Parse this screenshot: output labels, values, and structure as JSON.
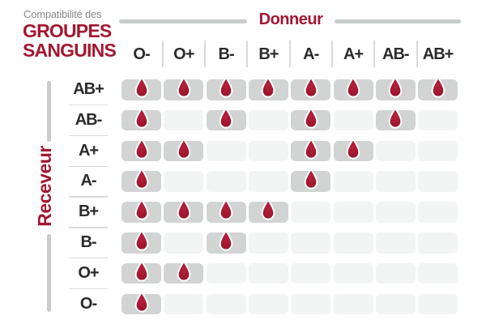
{
  "title": {
    "kicker": "Compatibilité des",
    "line1": "GROUPES",
    "line2": "SANGUINS"
  },
  "axes": {
    "donor": "Donneur",
    "recipient": "Receveur"
  },
  "chart_data": {
    "type": "heatmap",
    "title": "Compatibilité des GROUPES SANGUINS",
    "x_axis_label": "Donneur",
    "y_axis_label": "Receveur",
    "columns_donors": [
      "O-",
      "O+",
      "B-",
      "B+",
      "A-",
      "A+",
      "AB-",
      "AB+"
    ],
    "rows_recipients": [
      "AB+",
      "AB-",
      "A+",
      "A-",
      "B+",
      "B-",
      "O+",
      "O-"
    ],
    "compatible_matrix": [
      [
        1,
        1,
        1,
        1,
        1,
        1,
        1,
        1
      ],
      [
        1,
        0,
        1,
        0,
        1,
        0,
        1,
        0
      ],
      [
        1,
        1,
        0,
        0,
        1,
        1,
        0,
        0
      ],
      [
        1,
        0,
        0,
        0,
        1,
        0,
        0,
        0
      ],
      [
        1,
        1,
        1,
        1,
        0,
        0,
        0,
        0
      ],
      [
        1,
        0,
        1,
        0,
        0,
        0,
        0,
        0
      ],
      [
        1,
        1,
        0,
        0,
        0,
        0,
        0,
        0
      ],
      [
        1,
        0,
        0,
        0,
        0,
        0,
        0,
        0
      ]
    ],
    "cell_glyph": "blood-drop-icon"
  },
  "colors": {
    "accent_red": "#A21830",
    "drop_red_light": "#B5213C",
    "drop_red_dark": "#8C1126",
    "active_cell_gray": "#D2D4D4",
    "empty_cell_gray": "#F3F4F4",
    "axis_bar_gray": "#C9CCCC",
    "separator_gray": "#D9DBDB",
    "header_text": "#2B2B2B",
    "kicker_gray": "#8A8A8A"
  }
}
